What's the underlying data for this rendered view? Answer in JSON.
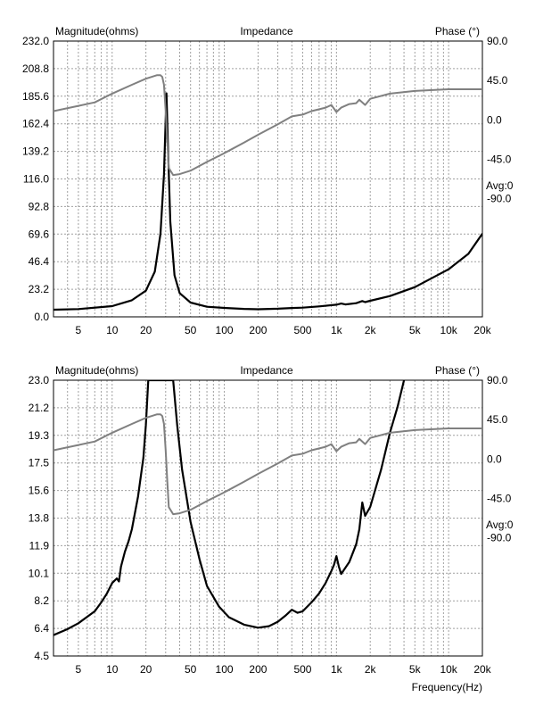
{
  "chart_data": [
    {
      "type": "line",
      "title": "Impedance",
      "ylabel": "Magnitude(ohms)",
      "y2label": "Phase (°)",
      "avg_label": "Avg:0",
      "xscale": "log",
      "xlim": [
        3,
        20000
      ],
      "ylim": [
        0,
        232
      ],
      "y2lim": [
        -225,
        90
      ],
      "grid": true,
      "x_ticks": [
        {
          "value": 5,
          "label": "5"
        },
        {
          "value": 10,
          "label": "10"
        },
        {
          "value": 20,
          "label": "20"
        },
        {
          "value": 50,
          "label": "50"
        },
        {
          "value": 100,
          "label": "100"
        },
        {
          "value": 200,
          "label": "200"
        },
        {
          "value": 500,
          "label": "500"
        },
        {
          "value": 1000,
          "label": "1k"
        },
        {
          "value": 2000,
          "label": "2k"
        },
        {
          "value": 5000,
          "label": "5k"
        },
        {
          "value": 10000,
          "label": "10k"
        },
        {
          "value": 20000,
          "label": "20k"
        }
      ],
      "y_ticks": [
        "0.0",
        "23.2",
        "46.4",
        "69.6",
        "92.8",
        "116.0",
        "139.2",
        "162.4",
        "185.6",
        "208.8",
        "232.0"
      ],
      "y2_ticks": [
        {
          "value": 90,
          "label": "90.0"
        },
        {
          "value": 45,
          "label": "45.0"
        },
        {
          "value": 0,
          "label": "0.0"
        },
        {
          "value": -45,
          "label": "-45.0"
        },
        {
          "value": -90,
          "label": "-90.0"
        }
      ],
      "series": [
        {
          "axis": "left",
          "color": "#000000",
          "points": [
            [
              3,
              6
            ],
            [
              5,
              6.5
            ],
            [
              10,
              9
            ],
            [
              15,
              14
            ],
            [
              20,
              22
            ],
            [
              24,
              38
            ],
            [
              27,
              70
            ],
            [
              29,
              120
            ],
            [
              30.5,
              188
            ],
            [
              31.5,
              140
            ],
            [
              33,
              80
            ],
            [
              36,
              35
            ],
            [
              40,
              20
            ],
            [
              50,
              12
            ],
            [
              70,
              8.5
            ],
            [
              100,
              7.5
            ],
            [
              150,
              6.7
            ],
            [
              200,
              6.4
            ],
            [
              300,
              6.8
            ],
            [
              400,
              7.4
            ],
            [
              500,
              7.7
            ],
            [
              700,
              8.8
            ],
            [
              1000,
              10.2
            ],
            [
              1100,
              11.2
            ],
            [
              1200,
              10.4
            ],
            [
              1500,
              11.5
            ],
            [
              1700,
              13.3
            ],
            [
              1800,
              12.4
            ],
            [
              2000,
              13.5
            ],
            [
              3000,
              17.5
            ],
            [
              5000,
              25
            ],
            [
              10000,
              40
            ],
            [
              15000,
              53
            ],
            [
              20000,
              70
            ]
          ]
        },
        {
          "axis": "right",
          "color": "#808080",
          "points": [
            [
              3,
              10
            ],
            [
              5,
              16
            ],
            [
              7,
              20
            ],
            [
              10,
              30
            ],
            [
              15,
              40
            ],
            [
              20,
              47
            ],
            [
              25,
              51
            ],
            [
              27,
              51
            ],
            [
              28,
              49
            ],
            [
              29,
              40
            ],
            [
              30,
              10
            ],
            [
              31,
              -25
            ],
            [
              32,
              -55
            ],
            [
              35,
              -63
            ],
            [
              40,
              -62
            ],
            [
              50,
              -58
            ],
            [
              70,
              -48
            ],
            [
              100,
              -38
            ],
            [
              150,
              -26
            ],
            [
              200,
              -17
            ],
            [
              300,
              -5
            ],
            [
              400,
              4
            ],
            [
              500,
              6
            ],
            [
              600,
              10
            ],
            [
              800,
              14
            ],
            [
              900,
              17
            ],
            [
              1000,
              9
            ],
            [
              1100,
              14
            ],
            [
              1300,
              18
            ],
            [
              1500,
              19
            ],
            [
              1600,
              23
            ],
            [
              1800,
              17
            ],
            [
              2000,
              24
            ],
            [
              3000,
              30
            ],
            [
              5000,
              33
            ],
            [
              10000,
              35
            ],
            [
              20000,
              35
            ]
          ]
        }
      ]
    },
    {
      "type": "line",
      "title": "Impedance",
      "ylabel": "Magnitude(ohms)",
      "y2label": "Phase (°)",
      "xlabel": "Frequency(Hz)",
      "avg_label": "Avg:0",
      "xscale": "log",
      "xlim": [
        3,
        20000
      ],
      "ylim": [
        4.5,
        23.0
      ],
      "y2lim": [
        -225,
        90
      ],
      "grid": true,
      "x_ticks": [
        {
          "value": 5,
          "label": "5"
        },
        {
          "value": 10,
          "label": "10"
        },
        {
          "value": 20,
          "label": "20"
        },
        {
          "value": 50,
          "label": "50"
        },
        {
          "value": 100,
          "label": "100"
        },
        {
          "value": 200,
          "label": "200"
        },
        {
          "value": 500,
          "label": "500"
        },
        {
          "value": 1000,
          "label": "1k"
        },
        {
          "value": 2000,
          "label": "2k"
        },
        {
          "value": 5000,
          "label": "5k"
        },
        {
          "value": 10000,
          "label": "10k"
        },
        {
          "value": 20000,
          "label": "20k"
        }
      ],
      "y_ticks": [
        "4.5",
        "6.4",
        "8.2",
        "10.1",
        "11.9",
        "13.8",
        "15.6",
        "17.5",
        "19.3",
        "21.2",
        "23.0"
      ],
      "y2_ticks": [
        {
          "value": 90,
          "label": "90.0"
        },
        {
          "value": 45,
          "label": "45.0"
        },
        {
          "value": 0,
          "label": "0.0"
        },
        {
          "value": -45,
          "label": "-45.0"
        },
        {
          "value": -90,
          "label": "-90.0"
        }
      ],
      "series": [
        {
          "axis": "left",
          "color": "#000000",
          "points": [
            [
              3,
              5.9
            ],
            [
              4,
              6.3
            ],
            [
              5,
              6.7
            ],
            [
              7,
              7.5
            ],
            [
              8,
              8.1
            ],
            [
              9,
              8.7
            ],
            [
              10,
              9.4
            ],
            [
              11,
              9.7
            ],
            [
              11.5,
              9.5
            ],
            [
              12,
              10.5
            ],
            [
              13,
              11.5
            ],
            [
              14,
              12.2
            ],
            [
              15,
              13
            ],
            [
              17,
              15.2
            ],
            [
              19,
              17.8
            ],
            [
              20,
              20
            ],
            [
              21,
              23
            ],
            [
              35,
              23
            ],
            [
              38,
              20
            ],
            [
              42,
              17
            ],
            [
              50,
              13.5
            ],
            [
              60,
              11
            ],
            [
              70,
              9.2
            ],
            [
              90,
              7.8
            ],
            [
              110,
              7.1
            ],
            [
              150,
              6.6
            ],
            [
              200,
              6.4
            ],
            [
              250,
              6.5
            ],
            [
              300,
              6.8
            ],
            [
              350,
              7.2
            ],
            [
              400,
              7.6
            ],
            [
              450,
              7.4
            ],
            [
              500,
              7.5
            ],
            [
              600,
              8.1
            ],
            [
              700,
              8.7
            ],
            [
              800,
              9.4
            ],
            [
              900,
              10.2
            ],
            [
              950,
              10.6
            ],
            [
              1000,
              11.2
            ],
            [
              1050,
              10.5
            ],
            [
              1100,
              10.0
            ],
            [
              1300,
              10.8
            ],
            [
              1500,
              12
            ],
            [
              1600,
              13
            ],
            [
              1700,
              14.8
            ],
            [
              1800,
              13.9
            ],
            [
              2000,
              14.5
            ],
            [
              2500,
              17
            ],
            [
              3000,
              19.5
            ],
            [
              3500,
              21.2
            ],
            [
              4000,
              23
            ]
          ]
        },
        {
          "axis": "right",
          "color": "#808080",
          "points": [
            [
              3,
              10
            ],
            [
              5,
              16
            ],
            [
              7,
              20
            ],
            [
              10,
              30
            ],
            [
              15,
              40
            ],
            [
              20,
              47
            ],
            [
              25,
              51
            ],
            [
              27,
              51
            ],
            [
              28,
              49
            ],
            [
              29,
              40
            ],
            [
              30,
              10
            ],
            [
              31,
              -25
            ],
            [
              32,
              -55
            ],
            [
              35,
              -63
            ],
            [
              40,
              -62
            ],
            [
              50,
              -58
            ],
            [
              70,
              -48
            ],
            [
              100,
              -38
            ],
            [
              150,
              -26
            ],
            [
              200,
              -17
            ],
            [
              300,
              -5
            ],
            [
              400,
              4
            ],
            [
              500,
              6
            ],
            [
              600,
              10
            ],
            [
              800,
              14
            ],
            [
              900,
              17
            ],
            [
              1000,
              9
            ],
            [
              1100,
              14
            ],
            [
              1300,
              18
            ],
            [
              1500,
              19
            ],
            [
              1600,
              23
            ],
            [
              1800,
              17
            ],
            [
              2000,
              24
            ],
            [
              3000,
              30
            ],
            [
              5000,
              33
            ],
            [
              10000,
              35
            ],
            [
              20000,
              35
            ]
          ]
        }
      ]
    }
  ]
}
